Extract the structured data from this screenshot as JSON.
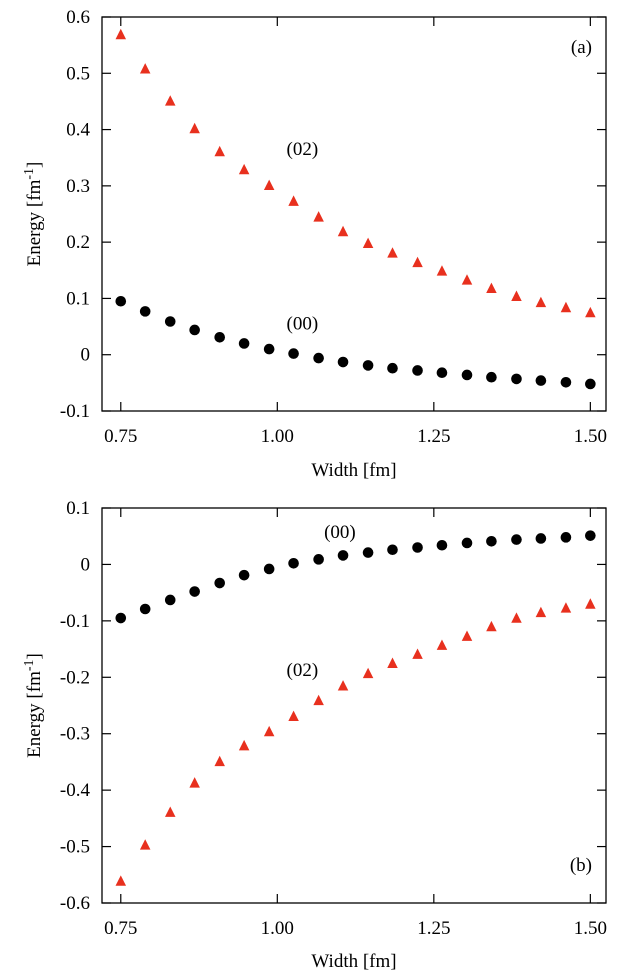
{
  "chart_data": [
    {
      "type": "scatter",
      "panel_label": "(a)",
      "xlabel": "Width [fm]",
      "ylabel": "Energy [fm",
      "ylabel_superscript": "-1",
      "ylabel_suffix": "]",
      "xlim": [
        0.72,
        1.525
      ],
      "ylim": [
        -0.1,
        0.6
      ],
      "x_ticks": [
        0.75,
        1.0,
        1.25,
        1.5
      ],
      "x_tick_labels": [
        "0.75",
        "1.00",
        "1.25",
        "1.50"
      ],
      "y_ticks": [
        -0.1,
        0,
        0.1,
        0.2,
        0.3,
        0.4,
        0.5,
        0.6
      ],
      "y_tick_labels": [
        "-0.1",
        "0",
        "0.1",
        "0.2",
        "0.3",
        "0.4",
        "0.5",
        "0.6"
      ],
      "grid": false,
      "series": [
        {
          "name": "(02)",
          "marker": "triangle",
          "color": "#e8301e",
          "label_at": [
            1.04,
            0.355
          ],
          "x": [
            0.75,
            0.789,
            0.829,
            0.868,
            0.908,
            0.947,
            0.987,
            1.026,
            1.066,
            1.105,
            1.145,
            1.184,
            1.224,
            1.263,
            1.303,
            1.342,
            1.382,
            1.421,
            1.461,
            1.5
          ],
          "y": [
            0.568,
            0.507,
            0.45,
            0.401,
            0.36,
            0.328,
            0.3,
            0.272,
            0.244,
            0.218,
            0.197,
            0.18,
            0.163,
            0.148,
            0.132,
            0.117,
            0.103,
            0.092,
            0.083,
            0.074
          ]
        },
        {
          "name": "(00)",
          "marker": "circle",
          "color": "#000000",
          "label_at": [
            1.04,
            0.045
          ],
          "x": [
            0.75,
            0.789,
            0.829,
            0.868,
            0.908,
            0.947,
            0.987,
            1.026,
            1.066,
            1.105,
            1.145,
            1.184,
            1.224,
            1.263,
            1.303,
            1.342,
            1.382,
            1.421,
            1.461,
            1.5
          ],
          "y": [
            0.095,
            0.077,
            0.059,
            0.044,
            0.031,
            0.02,
            0.01,
            0.002,
            -0.006,
            -0.013,
            -0.019,
            -0.024,
            -0.028,
            -0.032,
            -0.036,
            -0.04,
            -0.043,
            -0.046,
            -0.049,
            -0.052
          ]
        }
      ]
    },
    {
      "type": "scatter",
      "panel_label": "(b)",
      "xlabel": "Width [fm]",
      "ylabel": "Energy [fm",
      "ylabel_superscript": "-1",
      "ylabel_suffix": "]",
      "xlim": [
        0.72,
        1.525
      ],
      "ylim": [
        -0.6,
        0.1
      ],
      "x_ticks": [
        0.75,
        1.0,
        1.25,
        1.5
      ],
      "x_tick_labels": [
        "0.75",
        "1.00",
        "1.25",
        "1.50"
      ],
      "y_ticks": [
        -0.6,
        -0.5,
        -0.4,
        -0.3,
        -0.2,
        -0.1,
        0,
        0.1
      ],
      "y_tick_labels": [
        "-0.6",
        "-0.5",
        "-0.4",
        "-0.3",
        "-0.2",
        "-0.1",
        "0",
        "0.1"
      ],
      "grid": false,
      "series": [
        {
          "name": "(00)",
          "marker": "circle",
          "color": "#000000",
          "label_at": [
            1.1,
            0.047
          ],
          "x": [
            0.75,
            0.789,
            0.829,
            0.868,
            0.908,
            0.947,
            0.987,
            1.026,
            1.066,
            1.105,
            1.145,
            1.184,
            1.224,
            1.263,
            1.303,
            1.342,
            1.382,
            1.421,
            1.461,
            1.5
          ],
          "y": [
            -0.095,
            -0.079,
            -0.063,
            -0.048,
            -0.033,
            -0.019,
            -0.008,
            0.002,
            0.009,
            0.016,
            0.021,
            0.026,
            0.03,
            0.034,
            0.038,
            0.041,
            0.044,
            0.046,
            0.048,
            0.051
          ]
        },
        {
          "name": "(02)",
          "marker": "triangle",
          "color": "#e8301e",
          "label_at": [
            1.04,
            -0.198
          ],
          "x": [
            0.75,
            0.789,
            0.829,
            0.868,
            0.908,
            0.947,
            0.987,
            1.026,
            1.066,
            1.105,
            1.145,
            1.184,
            1.224,
            1.263,
            1.303,
            1.342,
            1.382,
            1.421,
            1.461,
            1.5
          ],
          "y": [
            -0.562,
            -0.498,
            -0.44,
            -0.388,
            -0.35,
            -0.322,
            -0.297,
            -0.27,
            -0.242,
            -0.216,
            -0.194,
            -0.176,
            -0.16,
            -0.144,
            -0.128,
            -0.111,
            -0.096,
            -0.086,
            -0.078,
            -0.071
          ]
        }
      ]
    }
  ]
}
